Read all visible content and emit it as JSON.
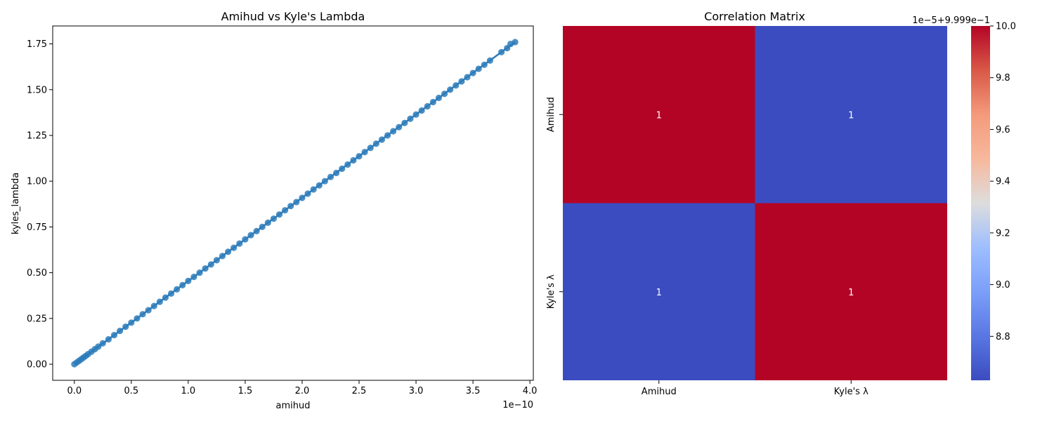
{
  "figure": {
    "background": "#ffffff"
  },
  "chart_data": [
    {
      "type": "scatter",
      "title": "Amihud vs Kyle's Lambda",
      "xlabel": "amihud",
      "ylabel": "kyles_lambda",
      "x_offset_text": "1e−10",
      "x_scale_exponent": -10,
      "xlim": [
        -0.19,
        4.03
      ],
      "ylim": [
        -0.088,
        1.848
      ],
      "x_ticks": [
        0.0,
        0.5,
        1.0,
        1.5,
        2.0,
        2.5,
        3.0,
        3.5,
        4.0
      ],
      "x_tick_labels": [
        "0.0",
        "0.5",
        "1.0",
        "1.5",
        "2.0",
        "2.5",
        "3.0",
        "3.5",
        "4.0"
      ],
      "y_ticks": [
        0.0,
        0.25,
        0.5,
        0.75,
        1.0,
        1.25,
        1.5,
        1.75
      ],
      "y_tick_labels": [
        "0.00",
        "0.25",
        "0.50",
        "0.75",
        "1.00",
        "1.25",
        "1.50",
        "1.75"
      ],
      "grid": false,
      "color": "#2b7bba",
      "regression_line": {
        "x": [
          0.0,
          3.87
        ],
        "y": [
          0.0,
          1.76
        ]
      },
      "points": {
        "x": [
          0,
          0.02,
          0.04,
          0.06,
          0.08,
          0.1,
          0.12,
          0.15,
          0.18,
          0.21,
          0.25,
          0.3,
          0.35,
          0.4,
          0.45,
          0.5,
          0.55,
          0.6,
          0.65,
          0.7,
          0.75,
          0.8,
          0.85,
          0.9,
          0.95,
          1.0,
          1.05,
          1.1,
          1.15,
          1.2,
          1.25,
          1.3,
          1.35,
          1.4,
          1.45,
          1.5,
          1.55,
          1.6,
          1.65,
          1.7,
          1.75,
          1.8,
          1.85,
          1.9,
          1.95,
          2.0,
          2.05,
          2.1,
          2.15,
          2.2,
          2.25,
          2.3,
          2.35,
          2.4,
          2.45,
          2.5,
          2.55,
          2.6,
          2.65,
          2.7,
          2.75,
          2.8,
          2.85,
          2.9,
          2.95,
          3.0,
          3.05,
          3.1,
          3.15,
          3.2,
          3.25,
          3.3,
          3.35,
          3.4,
          3.45,
          3.5,
          3.55,
          3.6,
          3.65,
          3.75,
          3.8,
          3.83,
          3.87
        ],
        "y": [
          0,
          0.009,
          0.018,
          0.027,
          0.036,
          0.045,
          0.055,
          0.068,
          0.082,
          0.096,
          0.114,
          0.136,
          0.159,
          0.182,
          0.205,
          0.227,
          0.25,
          0.273,
          0.295,
          0.318,
          0.341,
          0.364,
          0.386,
          0.409,
          0.432,
          0.455,
          0.477,
          0.5,
          0.523,
          0.545,
          0.568,
          0.591,
          0.614,
          0.636,
          0.659,
          0.682,
          0.705,
          0.727,
          0.75,
          0.773,
          0.795,
          0.818,
          0.841,
          0.864,
          0.886,
          0.909,
          0.932,
          0.955,
          0.977,
          1.0,
          1.023,
          1.045,
          1.068,
          1.091,
          1.114,
          1.136,
          1.159,
          1.182,
          1.205,
          1.227,
          1.25,
          1.273,
          1.295,
          1.318,
          1.341,
          1.364,
          1.386,
          1.409,
          1.432,
          1.455,
          1.477,
          1.5,
          1.523,
          1.545,
          1.568,
          1.591,
          1.614,
          1.636,
          1.659,
          1.705,
          1.727,
          1.75,
          1.76
        ]
      }
    },
    {
      "type": "heatmap",
      "title": "Correlation Matrix",
      "row_labels": [
        "Amihud",
        "Kyle's λ"
      ],
      "col_labels": [
        "Amihud",
        "Kyle's λ"
      ],
      "values": [
        [
          1.0,
          0.99990863
        ],
        [
          0.99990863,
          1.0
        ]
      ],
      "annotations": [
        [
          "1",
          "1"
        ],
        [
          "1",
          "1"
        ]
      ],
      "colormap": "coolwarm",
      "cell_colors": [
        [
          "#b40426",
          "#3b4cc0"
        ],
        [
          "#3b4cc0",
          "#b40426"
        ]
      ],
      "colorbar": {
        "offset_text": "1e−5+9.999e−1",
        "ticks": [
          8.8,
          9.0,
          9.2,
          9.4,
          9.6,
          9.8,
          10.0
        ],
        "tick_labels": [
          "8.8",
          "9.0",
          "9.2",
          "9.4",
          "9.6",
          "9.8",
          "10.0"
        ],
        "range": [
          8.63,
          10.0
        ]
      }
    }
  ]
}
